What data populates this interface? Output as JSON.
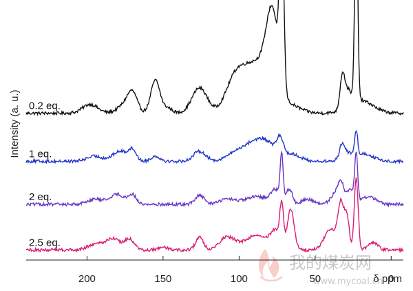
{
  "watermark": {
    "text": "我的煤炭网",
    "url": "www.mycoal.cn"
  },
  "chart_data": {
    "type": "line",
    "xlabel": "δ ppm",
    "ylabel": "Intensity (a. u.)",
    "xlim": [
      240,
      -8
    ],
    "x_reversed": true,
    "x_ticks": [
      200,
      150,
      100,
      50,
      0
    ],
    "y_ticks": [],
    "grid": false,
    "series": [
      {
        "name": "0.2 eq.",
        "color": "#111111",
        "baseline": 0.58,
        "peaks": [
          [
            198,
            0.035,
            5
          ],
          [
            174,
            0.04,
            5
          ],
          [
            170,
            0.06,
            3
          ],
          [
            155,
            0.13,
            3
          ],
          [
            147,
            0.02,
            3
          ],
          [
            126,
            0.1,
            5
          ],
          [
            103,
            0.1,
            6
          ],
          [
            88,
            0.2,
            10
          ],
          [
            78,
            0.3,
            4
          ],
          [
            72,
            0.7,
            1.3
          ],
          [
            64,
            0.02,
            6
          ],
          [
            32,
            0.14,
            1.6
          ],
          [
            28,
            0.06,
            2
          ],
          [
            23,
            0.78,
            1.0
          ],
          [
            20,
            0.05,
            8
          ]
        ]
      },
      {
        "name": "1 eq.",
        "color": "#1f35c9",
        "baseline": 0.39,
        "peaks": [
          [
            195,
            0.02,
            5
          ],
          [
            178,
            0.04,
            5
          ],
          [
            170,
            0.04,
            2.5
          ],
          [
            155,
            0.02,
            3
          ],
          [
            126,
            0.04,
            4
          ],
          [
            103,
            0.02,
            6
          ],
          [
            86,
            0.09,
            10
          ],
          [
            73,
            0.06,
            2
          ],
          [
            64,
            0.02,
            5
          ],
          [
            32,
            0.07,
            2
          ],
          [
            27,
            0.02,
            2
          ],
          [
            23,
            0.1,
            1.0
          ],
          [
            18,
            0.03,
            6
          ]
        ]
      },
      {
        "name": "2 eq.",
        "color": "#6a35c6",
        "baseline": 0.22,
        "peaks": [
          [
            195,
            0.02,
            5
          ],
          [
            180,
            0.04,
            5
          ],
          [
            170,
            0.035,
            2.5
          ],
          [
            126,
            0.035,
            3
          ],
          [
            108,
            0.02,
            5
          ],
          [
            88,
            0.03,
            8
          ],
          [
            76,
            0.05,
            3
          ],
          [
            72,
            0.18,
            1.0
          ],
          [
            67,
            0.06,
            2
          ],
          [
            55,
            0.02,
            4
          ],
          [
            37,
            0.04,
            3
          ],
          [
            33,
            0.08,
            2
          ],
          [
            27,
            0.06,
            2
          ],
          [
            23,
            0.19,
            1.0
          ],
          [
            15,
            0.03,
            5
          ]
        ]
      },
      {
        "name": "2.5 eq.",
        "color": "#d81b73",
        "baseline": 0.04,
        "peaks": [
          [
            195,
            0.02,
            5
          ],
          [
            183,
            0.045,
            5
          ],
          [
            172,
            0.04,
            3
          ],
          [
            150,
            0.01,
            3
          ],
          [
            126,
            0.05,
            2.5
          ],
          [
            108,
            0.05,
            5
          ],
          [
            88,
            0.06,
            8
          ],
          [
            76,
            0.06,
            3
          ],
          [
            72,
            0.16,
            1.2
          ],
          [
            66,
            0.16,
            2.2
          ],
          [
            40,
            0.08,
            4
          ],
          [
            33,
            0.18,
            2
          ],
          [
            29,
            0.12,
            1.5
          ],
          [
            23,
            0.28,
            1.3
          ],
          [
            12,
            0.03,
            3
          ]
        ]
      }
    ]
  }
}
